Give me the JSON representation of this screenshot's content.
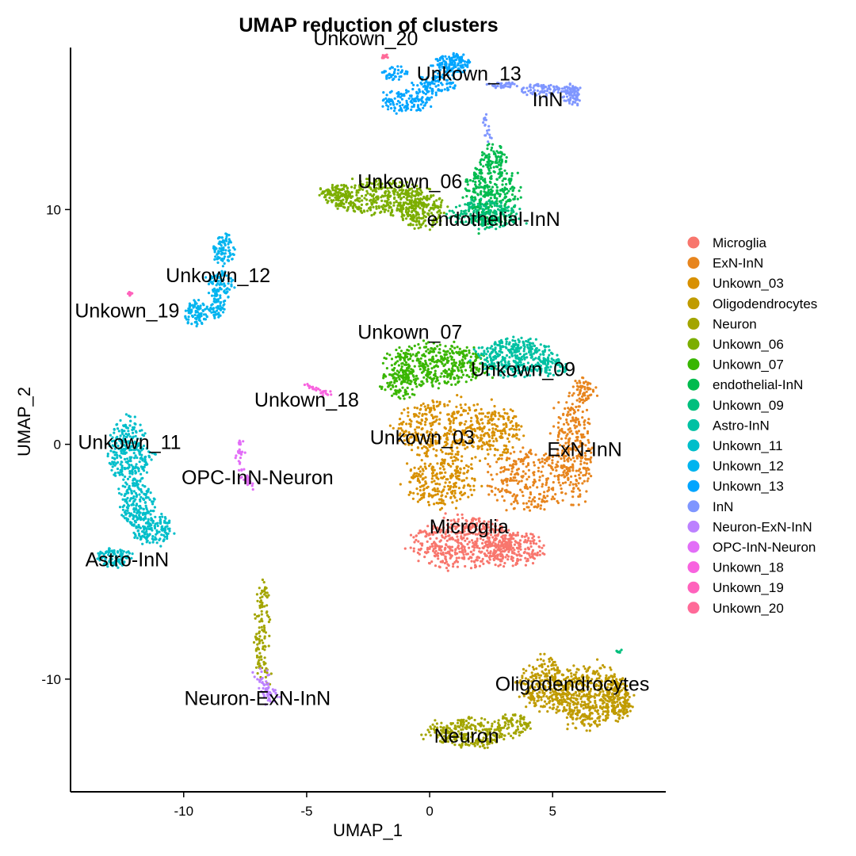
{
  "chart_data": {
    "type": "scatter",
    "title": "UMAP reduction of clusters",
    "xlabel": "UMAP_1",
    "ylabel": "UMAP_2",
    "xlim": [
      -14.6,
      9.6
    ],
    "ylim": [
      -14.8,
      16.9
    ],
    "xticks": [
      -10,
      -5,
      0,
      5
    ],
    "yticks": [
      -10,
      0,
      10
    ],
    "grid": false,
    "legend": "right",
    "series": [
      {
        "name": "Microglia",
        "color": "#F8766D",
        "label_at": [
          1.6,
          -3.8
        ],
        "blobs": [
          {
            "cx": 1.5,
            "cy": -4.2,
            "rx": 2.6,
            "ry": 1.2,
            "n": 520
          },
          {
            "cx": 3.5,
            "cy": -4.5,
            "rx": 1.4,
            "ry": 0.8,
            "n": 160
          }
        ]
      },
      {
        "name": "ExN-InN",
        "color": "#E7851E",
        "label_at": [
          6.3,
          -0.5
        ],
        "blobs": [
          {
            "cx": 5.8,
            "cy": -0.2,
            "rx": 0.9,
            "ry": 2.6,
            "n": 280
          },
          {
            "cx": 4.0,
            "cy": -1.5,
            "rx": 1.8,
            "ry": 1.5,
            "n": 260
          },
          {
            "cx": 6.3,
            "cy": 2.3,
            "rx": 0.6,
            "ry": 0.6,
            "n": 60
          }
        ]
      },
      {
        "name": "Unkown_03",
        "color": "#D89000",
        "label_at": [
          -0.3,
          0.0
        ],
        "blobs": [
          {
            "cx": 0.7,
            "cy": 0.6,
            "rx": 2.3,
            "ry": 1.5,
            "n": 380
          },
          {
            "cx": 0.4,
            "cy": -1.6,
            "rx": 1.6,
            "ry": 1.2,
            "n": 240
          },
          {
            "cx": 2.8,
            "cy": 0.5,
            "rx": 1.0,
            "ry": 1.2,
            "n": 140
          }
        ]
      },
      {
        "name": "Oligodendrocytes",
        "color": "#C09B00",
        "label_at": [
          5.8,
          -10.5
        ],
        "blobs": [
          {
            "cx": 6.5,
            "cy": -10.7,
            "rx": 1.6,
            "ry": 1.5,
            "n": 460
          },
          {
            "cx": 4.7,
            "cy": -10.2,
            "rx": 1.2,
            "ry": 1.3,
            "n": 260
          },
          {
            "cx": 7.7,
            "cy": -10.9,
            "rx": 0.6,
            "ry": 1.0,
            "n": 120
          }
        ]
      },
      {
        "name": "Neuron",
        "color": "#A3A500",
        "label_at": [
          1.5,
          -12.7
        ],
        "blobs": [
          {
            "cx": 1.5,
            "cy": -12.3,
            "rx": 1.8,
            "ry": 0.7,
            "n": 260
          },
          {
            "cx": 3.4,
            "cy": -11.9,
            "rx": 0.8,
            "ry": 0.6,
            "n": 80
          }
        ],
        "arc": [
          [
            -6.7,
            -6.0
          ],
          [
            -6.75,
            -7.0
          ],
          [
            -6.9,
            -8.2
          ],
          [
            -6.9,
            -9.2
          ],
          [
            -6.75,
            -10.0
          ]
        ],
        "arc_n": 120,
        "arc_w": 0.16
      },
      {
        "name": "Unkown_06",
        "color": "#7CAE00",
        "label_at": [
          -0.8,
          10.9
        ],
        "blobs": [
          {
            "cx": -2.0,
            "cy": 10.5,
            "rx": 2.4,
            "ry": 0.85,
            "n": 380
          },
          {
            "cx": -0.3,
            "cy": 9.9,
            "rx": 1.1,
            "ry": 0.8,
            "n": 180
          },
          {
            "cx": -3.8,
            "cy": 10.6,
            "rx": 0.8,
            "ry": 0.5,
            "n": 80
          }
        ]
      },
      {
        "name": "Unkown_07",
        "color": "#39B600",
        "label_at": [
          -0.8,
          4.5
        ],
        "blobs": [
          {
            "cx": 0.3,
            "cy": 3.4,
            "rx": 2.3,
            "ry": 1.0,
            "n": 420
          },
          {
            "cx": -1.2,
            "cy": 2.6,
            "rx": 0.9,
            "ry": 0.7,
            "n": 100
          }
        ]
      },
      {
        "name": "endothelial-InN",
        "color": "#00BB4E",
        "label_at": [
          2.6,
          9.3
        ],
        "blobs": [
          {
            "cx": 2.5,
            "cy": 10.7,
            "rx": 1.2,
            "ry": 1.6,
            "n": 340
          },
          {
            "cx": 2.6,
            "cy": 12.3,
            "rx": 0.6,
            "ry": 0.6,
            "n": 60
          }
        ]
      },
      {
        "name": "Unkown_09",
        "color": "#00BF7D",
        "label_at": [
          3.8,
          2.9
        ],
        "blobs": [
          {
            "cx": 2.3,
            "cy": 9.8,
            "rx": 1.6,
            "ry": 0.7,
            "n": 200
          },
          {
            "cx": 7.7,
            "cy": -8.8,
            "rx": 0.15,
            "ry": 0.1,
            "n": 8
          }
        ]
      },
      {
        "name": "Astro-InN",
        "color": "#00C1A3",
        "label_at": [
          -12.3,
          -5.2
        ],
        "blobs": [
          {
            "cx": 3.4,
            "cy": 3.7,
            "rx": 1.8,
            "ry": 0.9,
            "n": 360
          },
          {
            "cx": 5.0,
            "cy": 3.3,
            "rx": 0.7,
            "ry": 0.5,
            "n": 60
          }
        ]
      },
      {
        "name": "Unkown_11",
        "color": "#00BECA",
        "label_at": [
          -12.2,
          -0.2
        ],
        "blobs": [
          {
            "cx": -12.2,
            "cy": -0.4,
            "rx": 1.0,
            "ry": 1.6,
            "n": 280
          },
          {
            "cx": -11.9,
            "cy": -2.5,
            "rx": 0.8,
            "ry": 1.0,
            "n": 160
          },
          {
            "cx": -11.3,
            "cy": -3.6,
            "rx": 0.9,
            "ry": 0.8,
            "n": 160
          },
          {
            "cx": -12.8,
            "cy": -4.8,
            "rx": 0.8,
            "ry": 0.5,
            "n": 100
          }
        ]
      },
      {
        "name": "Unkown_12",
        "color": "#00B4EF",
        "label_at": [
          -8.6,
          6.9
        ],
        "blobs": [
          {
            "cx": -8.4,
            "cy": 8.3,
            "rx": 0.5,
            "ry": 0.8,
            "n": 90
          },
          {
            "cx": -8.5,
            "cy": 6.8,
            "rx": 0.6,
            "ry": 0.7,
            "n": 90
          },
          {
            "cx": -9.5,
            "cy": 5.6,
            "rx": 0.5,
            "ry": 0.7,
            "n": 90
          },
          {
            "cx": -8.7,
            "cy": 5.8,
            "rx": 0.4,
            "ry": 0.5,
            "n": 50
          }
        ]
      },
      {
        "name": "Unkown_13",
        "color": "#00A5FF",
        "label_at": [
          1.6,
          15.5
        ],
        "blobs": [
          {
            "cx": 0.9,
            "cy": 16.2,
            "rx": 0.8,
            "ry": 0.5,
            "n": 140
          },
          {
            "cx": 0.2,
            "cy": 15.3,
            "rx": 1.0,
            "ry": 0.5,
            "n": 100
          },
          {
            "cx": -1.0,
            "cy": 14.6,
            "rx": 1.2,
            "ry": 0.5,
            "n": 120
          },
          {
            "cx": -1.4,
            "cy": 15.8,
            "rx": 0.6,
            "ry": 0.4,
            "n": 40
          }
        ]
      },
      {
        "name": "InN",
        "color": "#7F96FF",
        "label_at": [
          4.8,
          14.4
        ],
        "blobs": [
          {
            "cx": 4.6,
            "cy": 15.1,
            "rx": 1.0,
            "ry": 0.3,
            "n": 80
          },
          {
            "cx": 5.8,
            "cy": 14.9,
            "rx": 0.4,
            "ry": 0.5,
            "n": 80
          },
          {
            "cx": 3.0,
            "cy": 15.3,
            "rx": 0.7,
            "ry": 0.15,
            "n": 40
          }
        ],
        "arc": [
          [
            2.25,
            13.9
          ],
          [
            2.35,
            13.4
          ],
          [
            2.45,
            12.9
          ]
        ],
        "arc_n": 18,
        "arc_w": 0.08
      },
      {
        "name": "Neuron-ExN-InN",
        "color": "#BC81FF",
        "label_at": [
          -7.0,
          -11.1
        ],
        "arc": [
          [
            -6.9,
            -9.8
          ],
          [
            -6.6,
            -10.4
          ],
          [
            -6.4,
            -11.0
          ]
        ],
        "arc_n": 60,
        "arc_w": 0.15
      },
      {
        "name": "OPC-InN-Neuron",
        "color": "#E26EF7",
        "label_at": [
          -7.0,
          -1.7
        ],
        "arc": [
          [
            -7.6,
            0.4
          ],
          [
            -7.8,
            -0.6
          ],
          [
            -7.6,
            -1.3
          ],
          [
            -7.2,
            -1.8
          ]
        ],
        "arc_n": 50,
        "arc_w": 0.1
      },
      {
        "name": "Unkown_18",
        "color": "#F863DF",
        "label_at": [
          -5.0,
          1.6
        ],
        "arc": [
          [
            -5.0,
            2.5
          ],
          [
            -4.5,
            2.3
          ],
          [
            -4.1,
            2.1
          ]
        ],
        "arc_n": 25,
        "arc_w": 0.07
      },
      {
        "name": "Unkown_19",
        "color": "#FF62BC",
        "label_at": [
          -12.3,
          5.4
        ],
        "blobs": [
          {
            "cx": -12.2,
            "cy": 6.4,
            "rx": 0.12,
            "ry": 0.12,
            "n": 10
          }
        ]
      },
      {
        "name": "Unkown_20",
        "color": "#FF6A98",
        "label_at": [
          -2.6,
          17.0
        ],
        "blobs": [
          {
            "cx": -1.8,
            "cy": 16.5,
            "rx": 0.15,
            "ry": 0.12,
            "n": 12
          }
        ]
      }
    ]
  }
}
